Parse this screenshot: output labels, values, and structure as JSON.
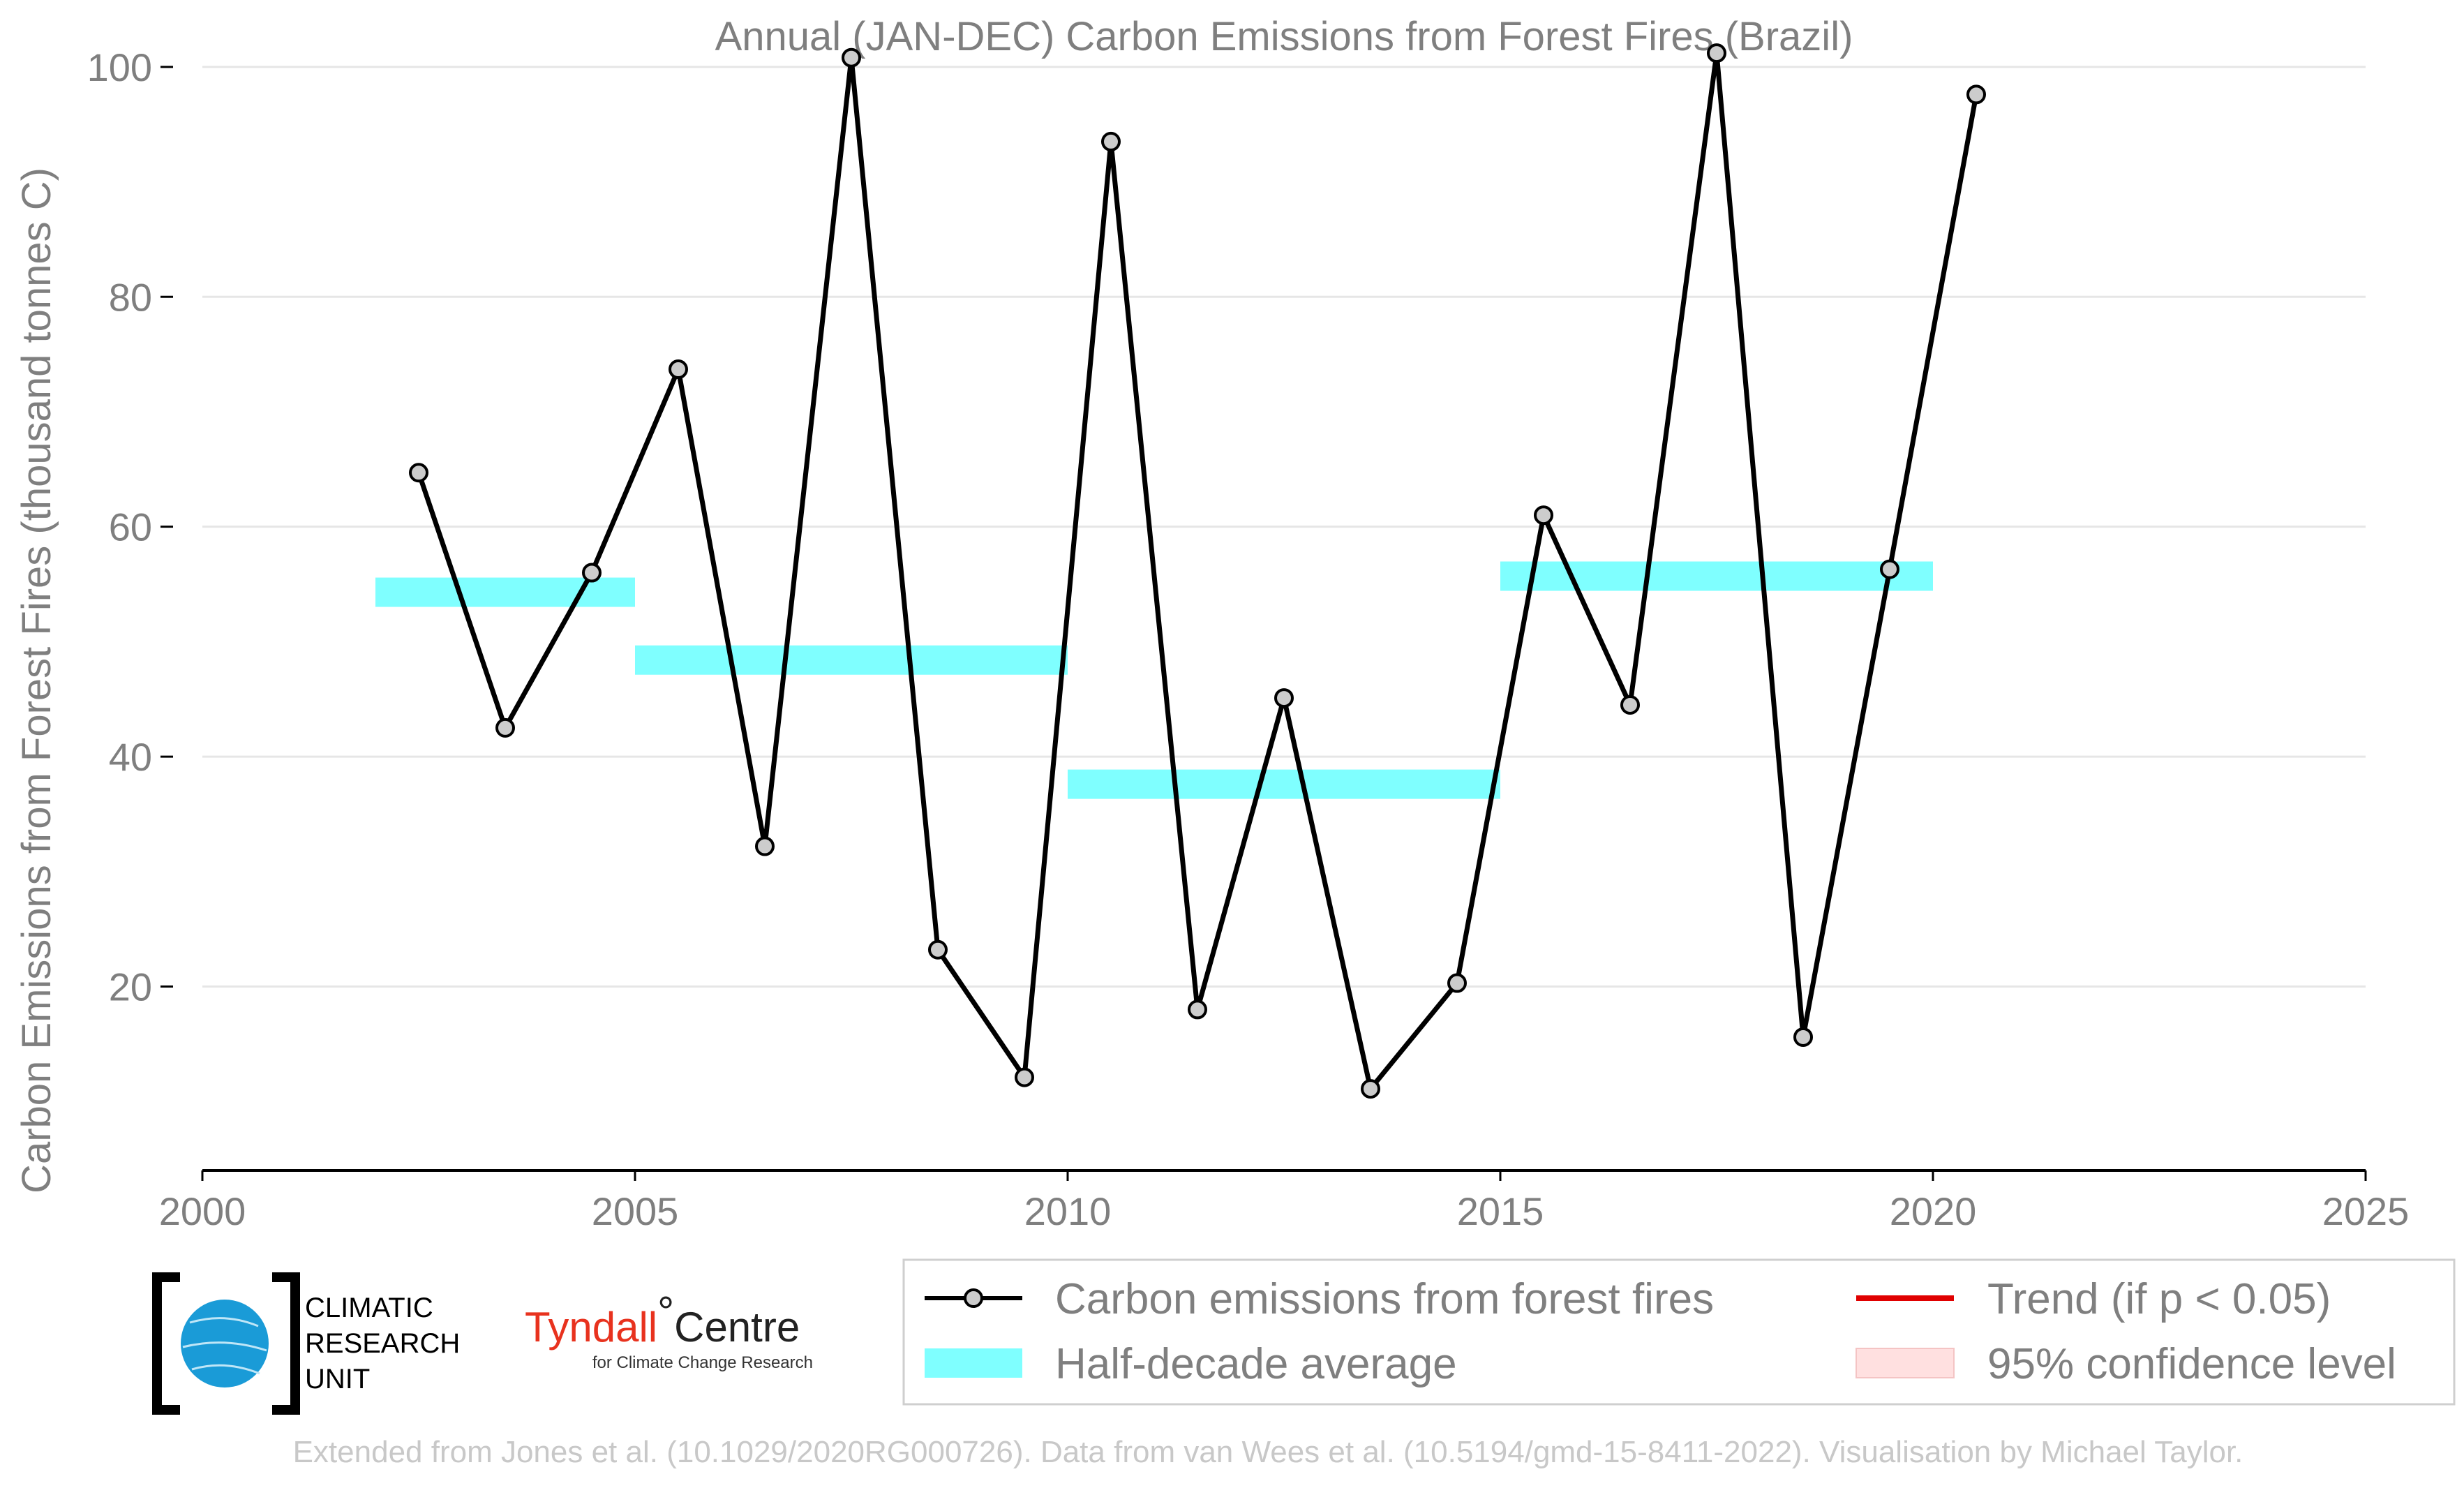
{
  "chart_data": {
    "type": "line",
    "title": "Annual (JAN-DEC) Carbon Emissions from Forest Fires (Brazil)",
    "ylabel": "Carbon Emissions from Forest Fires (thousand tonnes C)",
    "xlabel": "",
    "xlim": [
      2000,
      2025
    ],
    "ylim": [
      4,
      104
    ],
    "x_ticks": [
      2000,
      2005,
      2010,
      2015,
      2020,
      2025
    ],
    "y_ticks": [
      20,
      40,
      60,
      80,
      100
    ],
    "grid": "horizontal",
    "series": [
      {
        "name": "Carbon emissions from forest fires",
        "color": "#000000",
        "marker_fill": "#cccccc",
        "x": [
          2002.5,
          2003.5,
          2004.5,
          2005.5,
          2006.5,
          2007.5,
          2008.5,
          2009.5,
          2010.5,
          2011.5,
          2012.5,
          2013.5,
          2014.5,
          2015.5,
          2016.5,
          2017.5,
          2018.5,
          2019.5,
          2020.5
        ],
        "values": [
          64.7,
          42.5,
          56.0,
          73.7,
          32.2,
          100.8,
          23.2,
          12.1,
          93.5,
          18.0,
          45.1,
          11.1,
          20.3,
          61.0,
          44.5,
          101.2,
          15.6,
          56.3,
          97.6
        ]
      }
    ],
    "half_decade_averages": {
      "name": "Half-decade average",
      "color": "#7fffff",
      "segments": [
        {
          "x_start": 2002,
          "x_end": 2005,
          "value": 54.3
        },
        {
          "x_start": 2005,
          "x_end": 2010,
          "value": 48.4
        },
        {
          "x_start": 2010,
          "x_end": 2015,
          "value": 37.6
        },
        {
          "x_start": 2015,
          "x_end": 2020,
          "value": 55.7
        }
      ]
    },
    "legend": {
      "placement": "bottom-right",
      "items": [
        {
          "label": "Carbon emissions from forest fires",
          "type": "line-marker",
          "color": "#000000"
        },
        {
          "label": "Half-decade average",
          "type": "band",
          "color": "#7fffff"
        },
        {
          "label": "Trend (if p < 0.05)",
          "type": "line",
          "color": "#e00000"
        },
        {
          "label": "95% confidence level",
          "type": "patch",
          "color": "#ffe0e0"
        }
      ]
    }
  },
  "logos": {
    "cru": {
      "lines": [
        "CLIMATIC",
        "RESEARCH",
        "UNIT"
      ]
    },
    "tyndall": {
      "part1": "Tyndall",
      "degree": "°",
      "part2": "Centre",
      "sub": "for Climate Change Research"
    }
  },
  "credit": "Extended from Jones et al. (10.1029/2020RG000726). Data from van Wees et al. (10.5194/gmd-15-8411-2022). Visualisation by Michael Taylor."
}
